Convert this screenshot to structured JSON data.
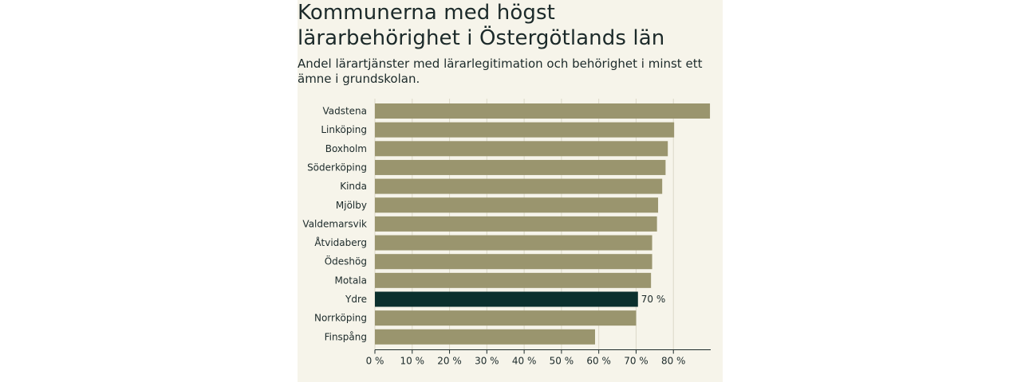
{
  "title": "Kommunerna med högst lärarbehörighet i Östergötlands län",
  "subtitle": "Andel lärartjänster med lärarlegitimation och behörighet i minst ett ämne i grundskolan.",
  "colors": {
    "bar": "#9a956e",
    "highlight": "#0b302d",
    "background": "#f6f4ea",
    "text": "#1c2a2a",
    "grid": "#dcd9c8",
    "axis": "#1c2a2a"
  },
  "chart_data": {
    "type": "bar",
    "orientation": "horizontal",
    "categories": [
      "Vadstena",
      "Linköping",
      "Boxholm",
      "Söderköping",
      "Kinda",
      "Mjölby",
      "Valdemarsvik",
      "Åtvidaberg",
      "Ödeshög",
      "Motala",
      "Ydre",
      "Norrköping",
      "Finspång"
    ],
    "values": [
      89.8,
      80.2,
      78.5,
      77.9,
      77.0,
      75.9,
      75.6,
      74.3,
      74.3,
      74.0,
      70.5,
      70.0,
      59.0
    ],
    "highlight": "Ydre",
    "data_labels": [
      {
        "category": "Ydre",
        "text": "70 %"
      }
    ],
    "x_ticks": [
      0,
      10,
      20,
      30,
      40,
      50,
      60,
      70,
      80
    ],
    "x_tick_labels": [
      "0 %",
      "10 %",
      "20 %",
      "30 %",
      "40 %",
      "50 %",
      "60 %",
      "70 %",
      "80 %"
    ],
    "xlim": [
      0,
      90
    ],
    "xlabel": "",
    "ylabel": "",
    "grid": true
  }
}
